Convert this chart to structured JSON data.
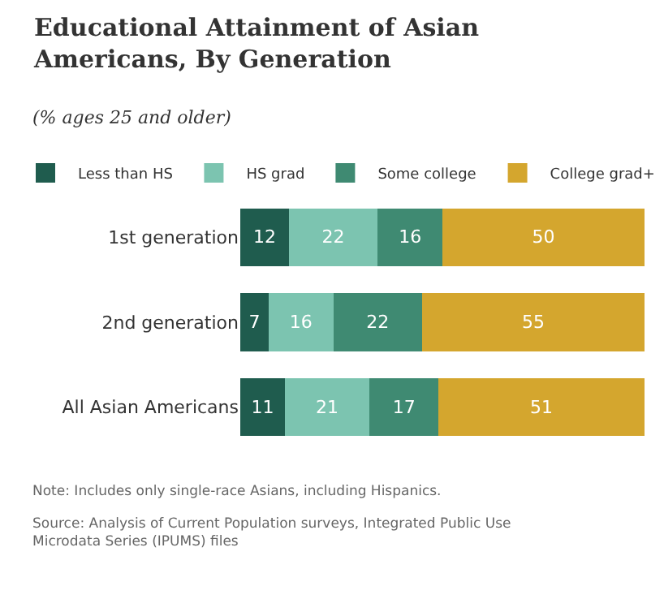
{
  "chart_data": {
    "type": "bar",
    "orientation": "horizontal",
    "stacked": true,
    "data_labels": true,
    "legend": "top left",
    "tick_labels": "y",
    "title": "Educational Attainment of Asian Americans, By Generation",
    "subtitle": "(% ages 25 and older)",
    "categories": [
      "1st generation",
      "2nd generation",
      "All Asian Americans"
    ],
    "series": [
      {
        "name": "Less than HS",
        "color": "#1f5c4e",
        "values": [
          12,
          7,
          11
        ]
      },
      {
        "name": "HS grad",
        "color": "#7cc4b0",
        "values": [
          22,
          16,
          21
        ]
      },
      {
        "name": "Some college",
        "color": "#3f8a72",
        "values": [
          16,
          22,
          17
        ]
      },
      {
        "name": "College grad+",
        "color": "#d4a62e",
        "values": [
          50,
          55,
          51
        ]
      }
    ],
    "annotations": [
      "Note: Includes only single-race Asians, including Hispanics.",
      "Source: Analysis of Current Population surveys, Integrated Public Use Microdata Series (IPUMS) files"
    ]
  }
}
